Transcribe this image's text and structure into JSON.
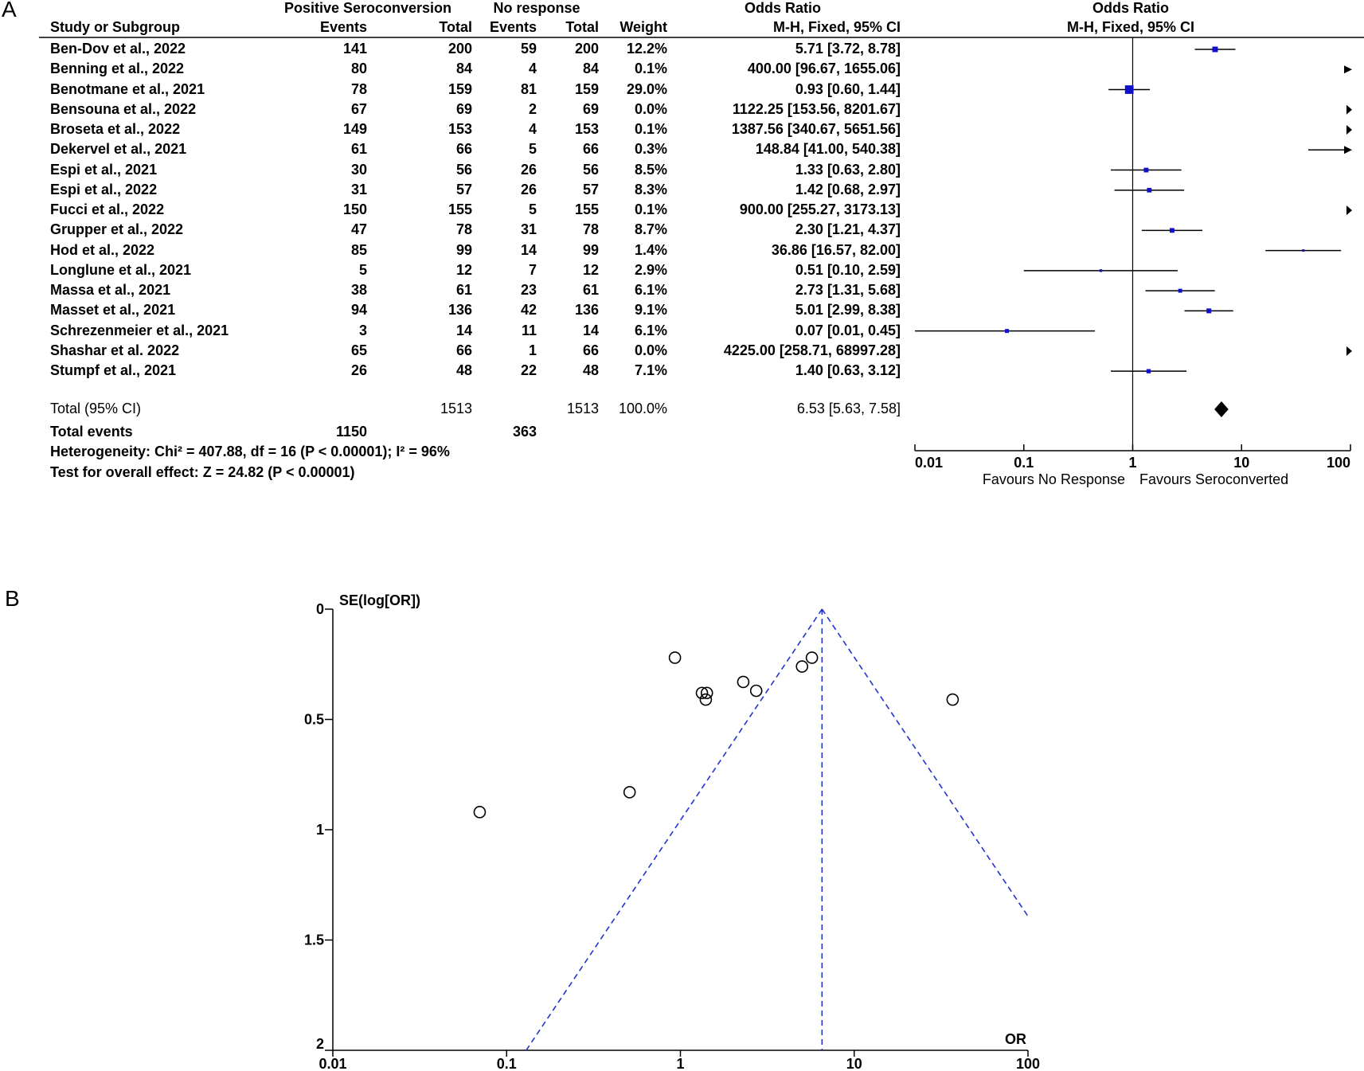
{
  "panels": {
    "a": "A",
    "b": "B"
  },
  "chart_data": [
    {
      "type": "table",
      "subtype": "forest-plot",
      "headers": {
        "group1": "Positive Seroconversion",
        "group2": "No response",
        "study": "Study or Subgroup",
        "events1": "Events",
        "total1": "Total",
        "events2": "Events",
        "total2": "Total",
        "weight": "Weight",
        "or_title": "Odds Ratio",
        "or_method": "M-H, Fixed, 95% CI",
        "plot_title": "Odds Ratio",
        "plot_method": "M-H, Fixed, 95% CI"
      },
      "studies": [
        {
          "name": "Ben-Dov et al., 2022",
          "e1": "141",
          "t1": "200",
          "e2": "59",
          "t2": "200",
          "weight": "12.2%",
          "w": 12.2,
          "or": 5.71,
          "lo": 3.72,
          "hi": 8.78,
          "text": "5.71 [3.72, 8.78]"
        },
        {
          "name": "Benning et al., 2022",
          "e1": "80",
          "t1": "84",
          "e2": "4",
          "t2": "84",
          "weight": "0.1%",
          "w": 0.1,
          "or": 400.0,
          "lo": 96.67,
          "hi": 1655.06,
          "text": "400.00 [96.67, 1655.06]"
        },
        {
          "name": "Benotmane et al., 2021",
          "e1": "78",
          "t1": "159",
          "e2": "81",
          "t2": "159",
          "weight": "29.0%",
          "w": 29.0,
          "or": 0.93,
          "lo": 0.6,
          "hi": 1.44,
          "text": "0.93 [0.60, 1.44]"
        },
        {
          "name": "Bensouna et al., 2022",
          "e1": "67",
          "t1": "69",
          "e2": "2",
          "t2": "69",
          "weight": "0.0%",
          "w": 0.0,
          "or": 1122.25,
          "lo": 153.56,
          "hi": 8201.67,
          "text": "1122.25 [153.56, 8201.67]"
        },
        {
          "name": "Broseta et al., 2022",
          "e1": "149",
          "t1": "153",
          "e2": "4",
          "t2": "153",
          "weight": "0.1%",
          "w": 0.1,
          "or": 1387.56,
          "lo": 340.67,
          "hi": 5651.56,
          "text": "1387.56 [340.67, 5651.56]"
        },
        {
          "name": "Dekervel et al., 2021",
          "e1": "61",
          "t1": "66",
          "e2": "5",
          "t2": "66",
          "weight": "0.3%",
          "w": 0.3,
          "or": 148.84,
          "lo": 41.0,
          "hi": 540.38,
          "text": "148.84 [41.00, 540.38]"
        },
        {
          "name": "Espi et al., 2021",
          "e1": "30",
          "t1": "56",
          "e2": "26",
          "t2": "56",
          "weight": "8.5%",
          "w": 8.5,
          "or": 1.33,
          "lo": 0.63,
          "hi": 2.8,
          "text": "1.33 [0.63, 2.80]"
        },
        {
          "name": "Espi et al., 2022",
          "e1": "31",
          "t1": "57",
          "e2": "26",
          "t2": "57",
          "weight": "8.3%",
          "w": 8.3,
          "or": 1.42,
          "lo": 0.68,
          "hi": 2.97,
          "text": "1.42 [0.68, 2.97]"
        },
        {
          "name": "Fucci et al., 2022",
          "e1": "150",
          "t1": "155",
          "e2": "5",
          "t2": "155",
          "weight": "0.1%",
          "w": 0.1,
          "or": 900.0,
          "lo": 255.27,
          "hi": 3173.13,
          "text": "900.00 [255.27, 3173.13]"
        },
        {
          "name": "Grupper et al., 2022",
          "e1": "47",
          "t1": "78",
          "e2": "31",
          "t2": "78",
          "weight": "8.7%",
          "w": 8.7,
          "or": 2.3,
          "lo": 1.21,
          "hi": 4.37,
          "text": "2.30 [1.21, 4.37]"
        },
        {
          "name": "Hod et al., 2022",
          "e1": "85",
          "t1": "99",
          "e2": "14",
          "t2": "99",
          "weight": "1.4%",
          "w": 1.4,
          "or": 36.86,
          "lo": 16.57,
          "hi": 82.0,
          "text": "36.86 [16.57, 82.00]"
        },
        {
          "name": "Longlune et al., 2021",
          "e1": "5",
          "t1": "12",
          "e2": "7",
          "t2": "12",
          "weight": "2.9%",
          "w": 2.9,
          "or": 0.51,
          "lo": 0.1,
          "hi": 2.59,
          "text": "0.51 [0.10, 2.59]"
        },
        {
          "name": "Massa et al., 2021",
          "e1": "38",
          "t1": "61",
          "e2": "23",
          "t2": "61",
          "weight": "6.1%",
          "w": 6.1,
          "or": 2.73,
          "lo": 1.31,
          "hi": 5.68,
          "text": "2.73 [1.31, 5.68]"
        },
        {
          "name": "Masset et al., 2021",
          "e1": "94",
          "t1": "136",
          "e2": "42",
          "t2": "136",
          "weight": "9.1%",
          "w": 9.1,
          "or": 5.01,
          "lo": 2.99,
          "hi": 8.38,
          "text": "5.01 [2.99, 8.38]"
        },
        {
          "name": "Schrezenmeier et al., 2021",
          "e1": "3",
          "t1": "14",
          "e2": "11",
          "t2": "14",
          "weight": "6.1%",
          "w": 6.1,
          "or": 0.07,
          "lo": 0.01,
          "hi": 0.45,
          "text": "0.07 [0.01, 0.45]"
        },
        {
          "name": "Shashar et al. 2022",
          "e1": "65",
          "t1": "66",
          "e2": "1",
          "t2": "66",
          "weight": "0.0%",
          "w": 0.0,
          "or": 4225.0,
          "lo": 258.71,
          "hi": 68997.28,
          "text": "4225.00 [258.71, 68997.28]"
        },
        {
          "name": "Stumpf et al., 2021",
          "e1": "26",
          "t1": "48",
          "e2": "22",
          "t2": "48",
          "weight": "7.1%",
          "w": 7.1,
          "or": 1.4,
          "lo": 0.63,
          "hi": 3.12,
          "text": "1.40 [0.63, 3.12]"
        }
      ],
      "total": {
        "label": "Total (95% CI)",
        "t1": "1513",
        "t2": "1513",
        "weight": "100.0%",
        "or": 6.53,
        "lo": 5.63,
        "hi": 7.58,
        "text": "6.53 [5.63, 7.58]"
      },
      "total_events": {
        "label": "Total events",
        "e1": "1150",
        "e2": "363"
      },
      "heterogeneity": "Heterogeneity: Chi² = 407.88, df = 16 (P < 0.00001); I² = 96%",
      "overall_effect": "Test for overall effect: Z = 24.82 (P < 0.00001)",
      "x_scale": "log",
      "xlim": [
        0.01,
        100
      ],
      "x_ticks": [
        "0.01",
        "0.1",
        "1",
        "10",
        "100"
      ],
      "favours_left": "Favours No Response",
      "favours_right": "Favours Seroconverted",
      "colors": {
        "marker": "#1010cc",
        "line": "#000000"
      }
    },
    {
      "type": "scatter",
      "subtype": "funnel-plot",
      "ylabel": "SE(log[OR])",
      "xlabel": "OR",
      "x_scale": "log",
      "xlim": [
        0.01,
        100
      ],
      "ylim": [
        0,
        2
      ],
      "y_reversed": true,
      "x_ticks": [
        "0.01",
        "0.1",
        "1",
        "10",
        "100"
      ],
      "y_ticks": [
        "0",
        "0.5",
        "1",
        "1.5",
        "2"
      ],
      "pooled_or": 6.53,
      "points": [
        {
          "or": 5.71,
          "se": 0.22
        },
        {
          "or": 0.93,
          "se": 0.22
        },
        {
          "or": 1.33,
          "se": 0.38
        },
        {
          "or": 1.42,
          "se": 0.38
        },
        {
          "or": 2.3,
          "se": 0.33
        },
        {
          "or": 36.86,
          "se": 0.41
        },
        {
          "or": 0.51,
          "se": 0.83
        },
        {
          "or": 2.73,
          "se": 0.37
        },
        {
          "or": 5.01,
          "se": 0.26
        },
        {
          "or": 0.07,
          "se": 0.92
        },
        {
          "or": 1.4,
          "se": 0.41
        }
      ],
      "colors": {
        "funnel": "#2233cc",
        "points": "#000000"
      }
    }
  ]
}
